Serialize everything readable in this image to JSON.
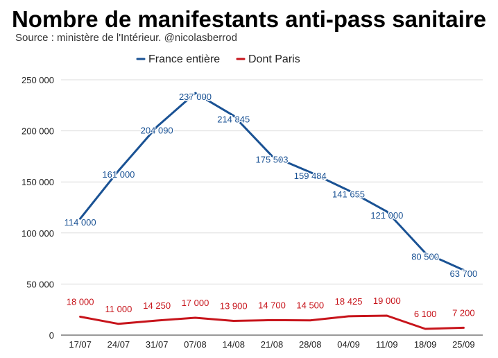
{
  "title": "Nombre de manifestants anti-pass sanitaire",
  "subtitle": "Source : ministère de l'Intérieur. @nicolasberrod",
  "chart_data": {
    "type": "line",
    "title": "Nombre de manifestants anti-pass sanitaire",
    "subtitle": "Source : ministère de l'Intérieur. @nicolasberrod",
    "categories": [
      "17/07",
      "24/07",
      "31/07",
      "07/08",
      "14/08",
      "21/08",
      "28/08",
      "04/09",
      "11/09",
      "18/09",
      "25/09"
    ],
    "series": [
      {
        "name": "France entière",
        "color": "#1a5294",
        "values": [
          114000,
          161000,
          204090,
          237000,
          214845,
          175503,
          159484,
          141655,
          121000,
          80500,
          63700
        ],
        "labels": [
          "114 000",
          "161 000",
          "204 090",
          "237 000",
          "214 845",
          "175 503",
          "159 484",
          "141 655",
          "121 000",
          "80 500",
          "63 700"
        ]
      },
      {
        "name": "Dont Paris",
        "color": "#c7141b",
        "values": [
          18000,
          11000,
          14250,
          17000,
          13900,
          14700,
          14500,
          18425,
          19000,
          6100,
          7200
        ],
        "labels": [
          "18 000",
          "11 000",
          "14 250",
          "17 000",
          "13 900",
          "14 700",
          "14 500",
          "18 425",
          "19 000",
          "6 100",
          "7 200"
        ]
      }
    ],
    "yticks": [
      "0",
      "50 000",
      "100 000",
      "150 000",
      "200 000",
      "250 000"
    ],
    "ylim": [
      0,
      250000
    ],
    "xlabel": "",
    "ylabel": "",
    "grid": true,
    "legend": "top-center"
  }
}
